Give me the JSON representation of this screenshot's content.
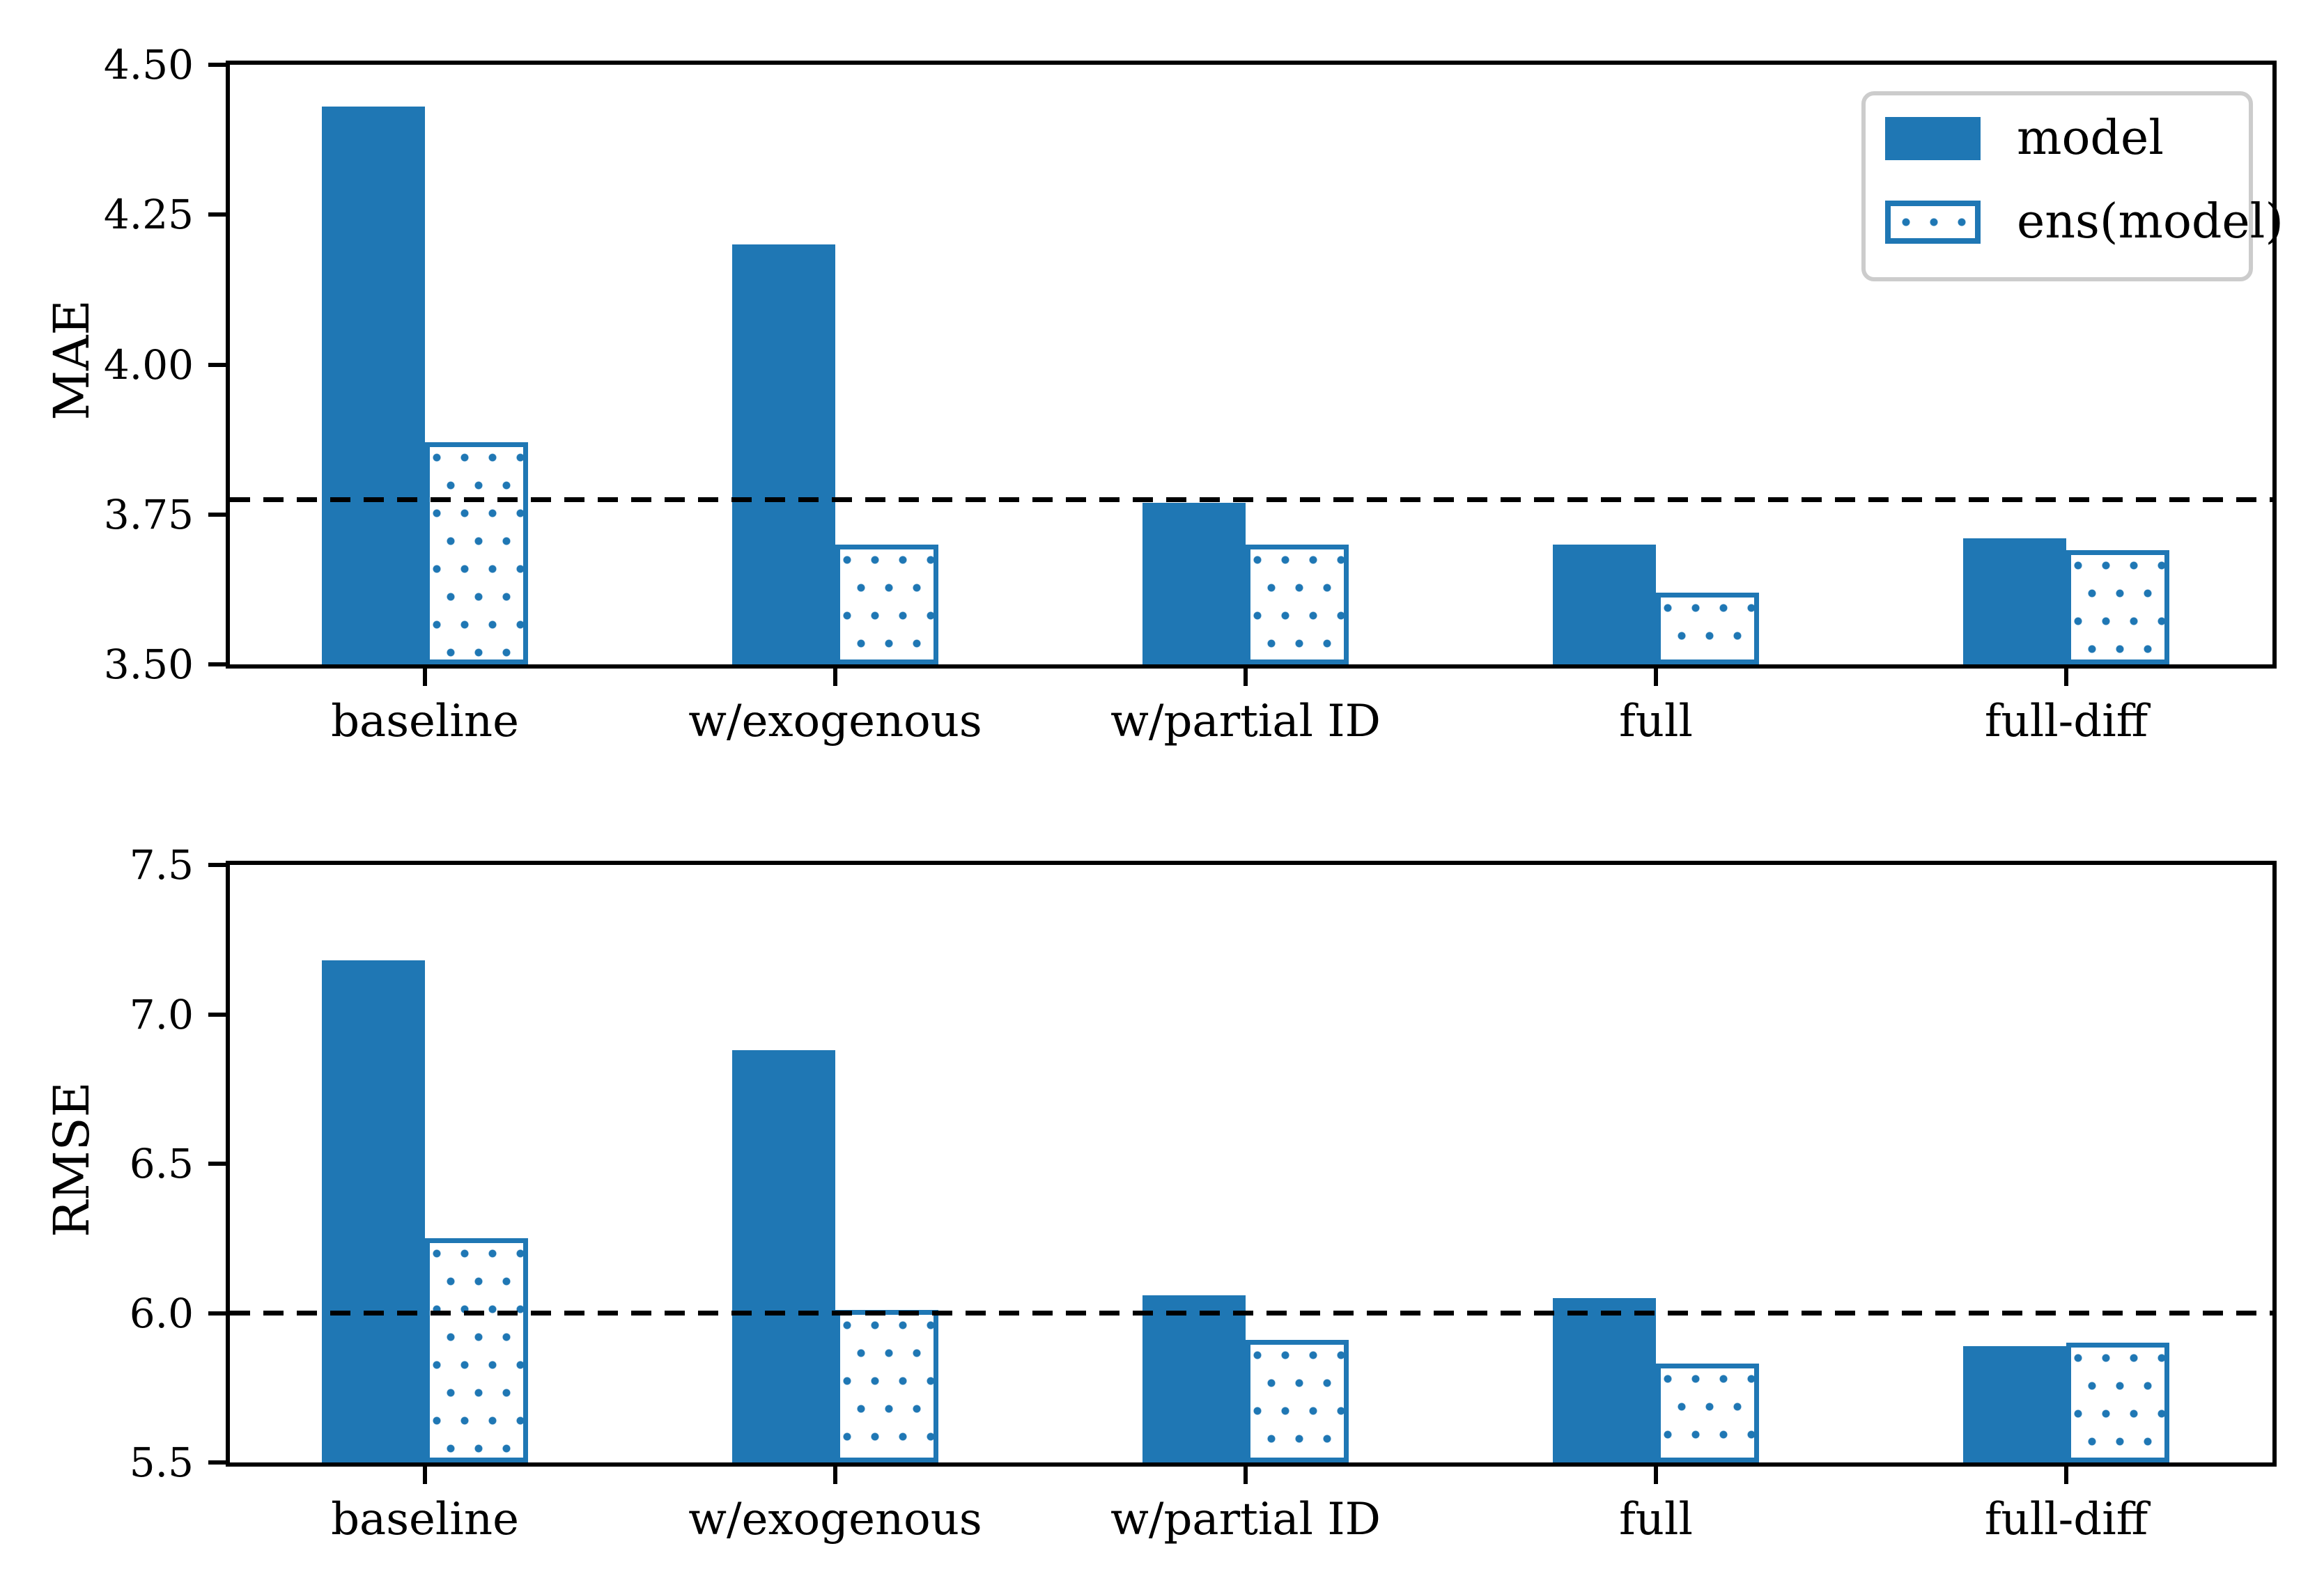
{
  "colors": {
    "bar_blue": "#1f77b4",
    "reference_line": "#000000",
    "axis_color": "#000000",
    "legend_border": "#cccccc",
    "background": "#ffffff"
  },
  "legend": {
    "position": "upper right",
    "items": [
      {
        "label": "model",
        "swatch": "solid-blue"
      },
      {
        "label": "ens(model)",
        "swatch": "dotted-outline-blue"
      }
    ]
  },
  "chart_data": [
    {
      "type": "bar",
      "title": "",
      "xlabel": "",
      "ylabel": "MAE",
      "categories": [
        "baseline",
        "w/exogenous",
        "w/partial ID",
        "full",
        "full-diff"
      ],
      "series": [
        {
          "name": "model",
          "style": "solid",
          "values": [
            4.43,
            4.2,
            3.77,
            3.7,
            3.71
          ]
        },
        {
          "name": "ens(model)",
          "style": "dotted-outline",
          "values": [
            3.87,
            3.7,
            3.7,
            3.62,
            3.69
          ]
        }
      ],
      "dashed_reference_line": 3.775,
      "ylim": [
        3.5,
        4.5
      ],
      "yticks": [
        3.5,
        3.75,
        4.0,
        4.25,
        4.5
      ],
      "ytick_labels": [
        "3.50",
        "3.75",
        "4.00",
        "4.25",
        "4.50"
      ],
      "grid": false,
      "legend_position": "upper right"
    },
    {
      "type": "bar",
      "title": "",
      "xlabel": "",
      "ylabel": "RMSE",
      "categories": [
        "baseline",
        "w/exogenous",
        "w/partial ID",
        "full",
        "full-diff"
      ],
      "series": [
        {
          "name": "model",
          "style": "solid",
          "values": [
            7.18,
            6.88,
            6.06,
            6.05,
            5.89
          ]
        },
        {
          "name": "ens(model)",
          "style": "dotted-outline",
          "values": [
            6.25,
            6.01,
            5.91,
            5.83,
            5.9
          ]
        }
      ],
      "dashed_reference_line": 6.0,
      "ylim": [
        5.5,
        7.5
      ],
      "yticks": [
        5.5,
        6.0,
        6.5,
        7.0,
        7.5
      ],
      "ytick_labels": [
        "5.5",
        "6.0",
        "6.5",
        "7.0",
        "7.5"
      ],
      "grid": false,
      "legend_position": "none"
    }
  ]
}
